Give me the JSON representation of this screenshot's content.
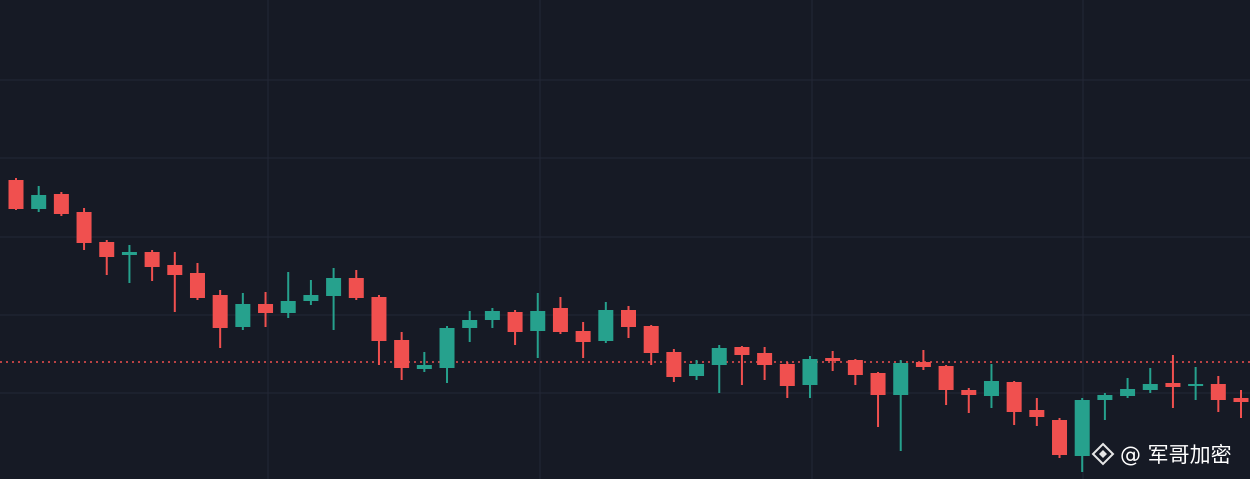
{
  "chart_data": {
    "type": "candlestick",
    "ylim": [
      0,
      479
    ],
    "up_color": "#26a18d",
    "down_color": "#f0504f",
    "open": [
      299,
      270,
      285,
      267,
      237,
      224,
      227,
      214,
      206,
      184,
      152,
      175,
      166,
      178,
      183,
      201,
      182,
      139,
      110,
      111,
      151,
      159,
      167,
      148,
      171,
      148,
      138,
      169,
      153,
      127,
      103,
      114,
      132,
      126,
      115,
      94,
      121,
      119,
      106,
      84,
      117,
      113,
      89,
      83,
      97,
      69,
      59,
      23,
      79,
      83,
      89,
      96,
      93,
      95,
      81
    ],
    "high": [
      301,
      293,
      287,
      271,
      239,
      234,
      229,
      227,
      216,
      189,
      186,
      187,
      207,
      199,
      211,
      209,
      184,
      147,
      127,
      153,
      168,
      171,
      169,
      186,
      182,
      157,
      177,
      173,
      154,
      130,
      119,
      134,
      133,
      132,
      117,
      123,
      128,
      120,
      107,
      119,
      129,
      114,
      91,
      115,
      98,
      81,
      61,
      81,
      86,
      101,
      111,
      124,
      112,
      103,
      89
    ],
    "low": [
      269,
      267,
      263,
      229,
      204,
      196,
      198,
      167,
      179,
      131,
      149,
      152,
      161,
      174,
      149,
      179,
      114,
      99,
      107,
      96,
      137,
      151,
      134,
      121,
      145,
      121,
      136,
      141,
      114,
      97,
      99,
      86,
      94,
      99,
      81,
      81,
      108,
      94,
      52,
      28,
      109,
      74,
      66,
      71,
      54,
      53,
      21,
      7,
      59,
      81,
      86,
      71,
      79,
      67,
      61
    ],
    "close": [
      270,
      284,
      265,
      236,
      222,
      227,
      212,
      204,
      181,
      151,
      175,
      166,
      178,
      184,
      201,
      181,
      138,
      111,
      114,
      151,
      159,
      168,
      147,
      168,
      147,
      137,
      169,
      152,
      126,
      102,
      115,
      131,
      124,
      114,
      93,
      120,
      118,
      104,
      84,
      116,
      112,
      89,
      84,
      98,
      67,
      62,
      24,
      79,
      84,
      90,
      95,
      92,
      95,
      79,
      77
    ],
    "price_line": 117,
    "price_line_color": "#f0504f",
    "watermark": "@ 军哥加密"
  }
}
